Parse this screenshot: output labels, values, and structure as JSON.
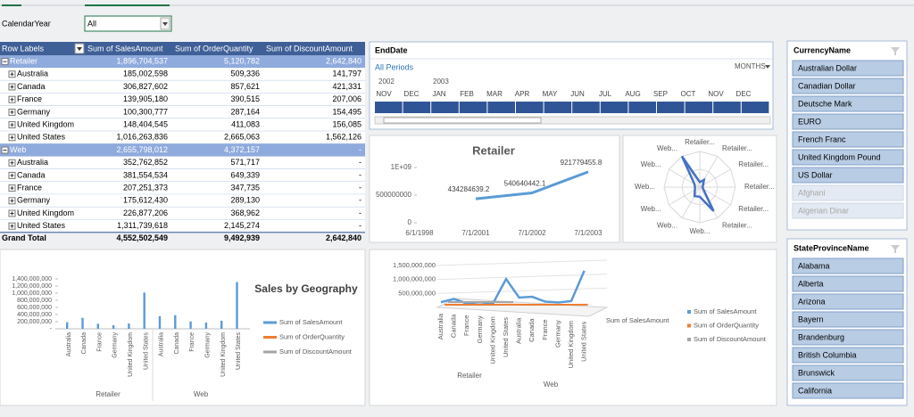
{
  "filter": {
    "label": "CalendarYear",
    "value": "All"
  },
  "pivot": {
    "headers": [
      "Row Labels",
      "Sum of SalesAmount",
      "Sum of OrderQuantity",
      "Sum of DiscountAmount"
    ],
    "groups": [
      {
        "name": "Retailer",
        "totals": [
          "1,896,704,537",
          "5,120,782",
          "2,642,840"
        ],
        "rows": [
          [
            "Australia",
            "185,002,598",
            "509,336",
            "141,797"
          ],
          [
            "Canada",
            "306,827,602",
            "857,621",
            "421,331"
          ],
          [
            "France",
            "139,905,180",
            "390,515",
            "207,006"
          ],
          [
            "Germany",
            "100,300,777",
            "287,164",
            "154,495"
          ],
          [
            "United Kingdom",
            "148,404,545",
            "411,083",
            "156,085"
          ],
          [
            "United States",
            "1,016,263,836",
            "2,665,063",
            "1,562,126"
          ]
        ]
      },
      {
        "name": "Web",
        "totals": [
          "2,655,798,012",
          "4,372,157",
          "-"
        ],
        "rows": [
          [
            "Australia",
            "352,762,852",
            "571,717",
            "-"
          ],
          [
            "Canada",
            "381,554,534",
            "649,339",
            "-"
          ],
          [
            "France",
            "207,251,373",
            "347,735",
            "-"
          ],
          [
            "Germany",
            "175,612,430",
            "289,130",
            "-"
          ],
          [
            "United Kingdom",
            "226,877,206",
            "368,962",
            "-"
          ],
          [
            "United States",
            "1,311,739,618",
            "2,145,274",
            "-"
          ]
        ]
      }
    ],
    "grand_total": [
      "Grand Total",
      "4,552,502,549",
      "9,492,939",
      "2,642,840"
    ]
  },
  "timeline": {
    "title": "EndDate",
    "all_periods": "All Periods",
    "level": "MONTHS",
    "years": [
      "2002",
      "2003"
    ],
    "months": [
      "NOV",
      "DEC",
      "JAN",
      "FEB",
      "MAR",
      "APR",
      "MAY",
      "JUN",
      "JUL",
      "AUG",
      "SEP",
      "OCT",
      "NOV",
      "DEC"
    ]
  },
  "line_chart": {
    "type": "line",
    "title": "Retailer",
    "categories": [
      "6/1/1998",
      "7/1/2001",
      "7/1/2002",
      "7/1/2003"
    ],
    "values": [
      null,
      434284639.2,
      540640442.1,
      921779455.8
    ],
    "color": "#5b9bd5",
    "ylim": [
      0,
      1000000000
    ],
    "yticks": [
      0,
      500000000,
      {
        "value": 1000000000,
        "label": "1E+09"
      }
    ]
  },
  "radar": {
    "type": "radar",
    "labels": [
      "Retailer...",
      "Retailer...",
      "Retailer...",
      "Retailer...",
      "Retailer...",
      "Retailer...",
      "Web...",
      "Web...",
      "Web...",
      "Web...",
      "Web...",
      "Web..."
    ],
    "color": "#4472c4"
  },
  "bar_chart": {
    "type": "bar",
    "title": "Sales by Geography",
    "groups": [
      "Retailer",
      "Web"
    ],
    "categories": [
      "Australia",
      "Canada",
      "France",
      "Germany",
      "United Kingdom",
      "United States",
      "Australia",
      "Canada",
      "France",
      "Germany",
      "United Kingdom",
      "United States"
    ],
    "series": [
      {
        "name": "Sum of SalesAmount",
        "color": "#5b9bd5",
        "values": [
          185002598,
          306827602,
          139905180,
          100300777,
          148404545,
          1016263836,
          352762852,
          381554534,
          207251373,
          175612430,
          226877206,
          1311739618
        ]
      },
      {
        "name": "Sum of OrderQuantity",
        "color": "#ed7d31",
        "values": [
          509336,
          857621,
          390515,
          287164,
          411083,
          2665063,
          571717,
          649339,
          347735,
          289130,
          368962,
          2145274
        ]
      },
      {
        "name": "Sum of DiscountAmount",
        "color": "#a5a5a5",
        "values": [
          141797,
          421331,
          207006,
          154495,
          156085,
          1562126,
          null,
          null,
          null,
          null,
          null,
          null
        ]
      }
    ],
    "ylim": [
      0,
      1400000000
    ],
    "yticks": [
      {
        "value": 0,
        "label": "-"
      },
      {
        "value": 200000000,
        "label": "200,000,000"
      },
      {
        "value": 400000000,
        "label": "400,000,000"
      },
      {
        "value": 600000000,
        "label": "600,000,000"
      },
      {
        "value": 800000000,
        "label": "800,000,000"
      },
      {
        "value": 1000000000,
        "label": "1,000,000,000"
      },
      {
        "value": 1200000000,
        "label": "1,200,000,000"
      },
      {
        "value": 1400000000,
        "label": "1,400,000,000"
      }
    ]
  },
  "chart_3d": {
    "type": "line",
    "ylim": [
      0,
      1500000000
    ],
    "yticks": [
      {
        "value": 500000000,
        "label": "500,000,000"
      },
      {
        "value": 1000000000,
        "label": "1,000,000,000"
      },
      {
        "value": 1500000000,
        "label": "1,500,000,000"
      }
    ]
  },
  "currency_slicer": {
    "title": "CurrencyName",
    "items": [
      {
        "label": "Australian Dollar",
        "available": true
      },
      {
        "label": "Canadian Dollar",
        "available": true
      },
      {
        "label": "Deutsche Mark",
        "available": true
      },
      {
        "label": "EURO",
        "available": true
      },
      {
        "label": "French Franc",
        "available": true
      },
      {
        "label": "United Kingdom Pound",
        "available": true
      },
      {
        "label": "US Dollar",
        "available": true
      },
      {
        "label": "Afghani",
        "available": false
      },
      {
        "label": "Algerian Dinar",
        "available": false
      }
    ]
  },
  "state_slicer": {
    "title": "StateProvinceName",
    "items": [
      {
        "label": "Alabama",
        "available": true
      },
      {
        "label": "Alberta",
        "available": true
      },
      {
        "label": "Arizona",
        "available": true
      },
      {
        "label": "Bayern",
        "available": true
      },
      {
        "label": "Brandenburg",
        "available": true
      },
      {
        "label": "British Columbia",
        "available": true
      },
      {
        "label": "Brunswick",
        "available": true
      },
      {
        "label": "California",
        "available": true
      }
    ]
  }
}
